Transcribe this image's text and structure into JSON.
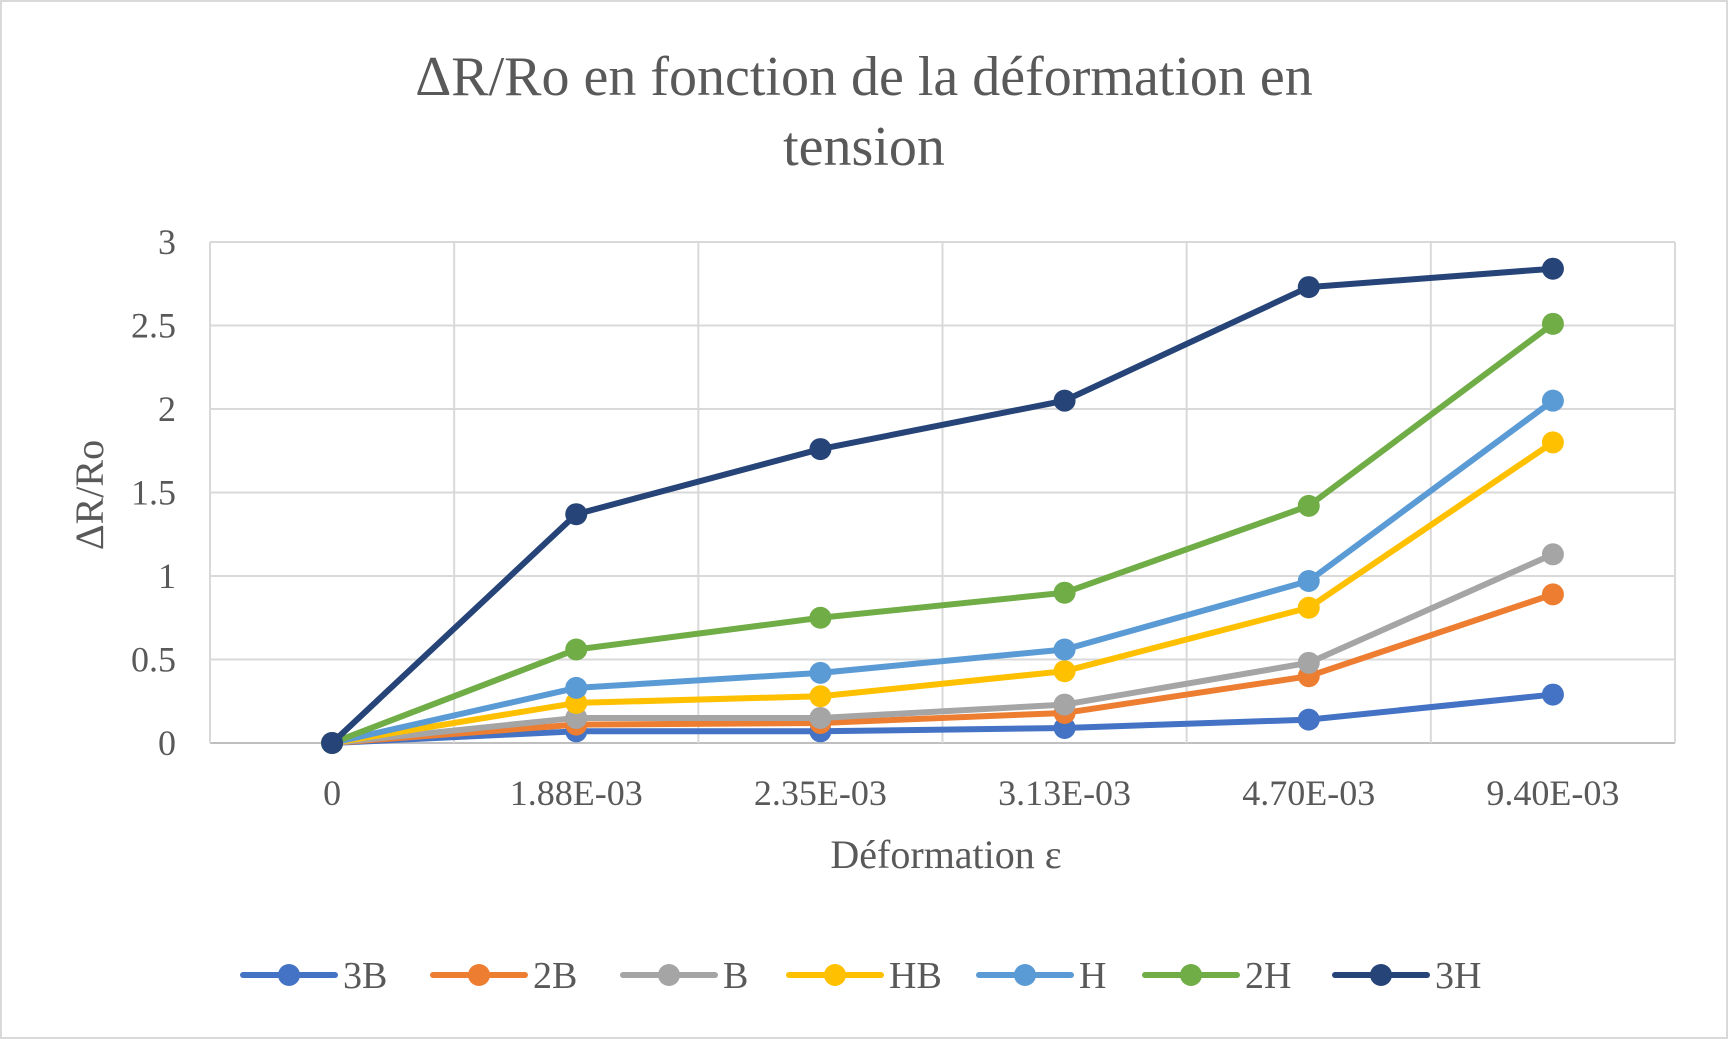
{
  "chart_data": {
    "type": "line",
    "title": "ΔR/Ro en fonction de la déformation en\ntension",
    "xlabel": "Déformation ε",
    "ylabel": "ΔR/Ro",
    "categories": [
      "0",
      "1.88E-03",
      "2.35E-03",
      "3.13E-03",
      "4.70E-03",
      "9.40E-03"
    ],
    "ylim": [
      0,
      3
    ],
    "yticks": [
      "0",
      "0.5",
      "1",
      "1.5",
      "2",
      "2.5",
      "3"
    ],
    "grid": true,
    "legend_position": "bottom",
    "series": [
      {
        "name": "3B",
        "color": "#4472C4",
        "values": [
          0,
          0.07,
          0.07,
          0.09,
          0.14,
          0.29
        ]
      },
      {
        "name": "2B",
        "color": "#ED7D31",
        "values": [
          0,
          0.11,
          0.12,
          0.18,
          0.4,
          0.89
        ]
      },
      {
        "name": "B",
        "color": "#A5A5A5",
        "values": [
          0,
          0.15,
          0.15,
          0.23,
          0.48,
          1.13
        ]
      },
      {
        "name": "HB",
        "color": "#FFC000",
        "values": [
          0,
          0.24,
          0.28,
          0.43,
          0.81,
          1.8
        ]
      },
      {
        "name": "H",
        "color": "#5B9BD5",
        "values": [
          0,
          0.33,
          0.42,
          0.56,
          0.97,
          2.05
        ]
      },
      {
        "name": "2H",
        "color": "#70AD47",
        "values": [
          0,
          0.56,
          0.75,
          0.9,
          1.42,
          2.51
        ]
      },
      {
        "name": "3H",
        "color": "#264478",
        "values": [
          0,
          1.37,
          1.76,
          2.05,
          2.73,
          2.84
        ]
      }
    ]
  }
}
